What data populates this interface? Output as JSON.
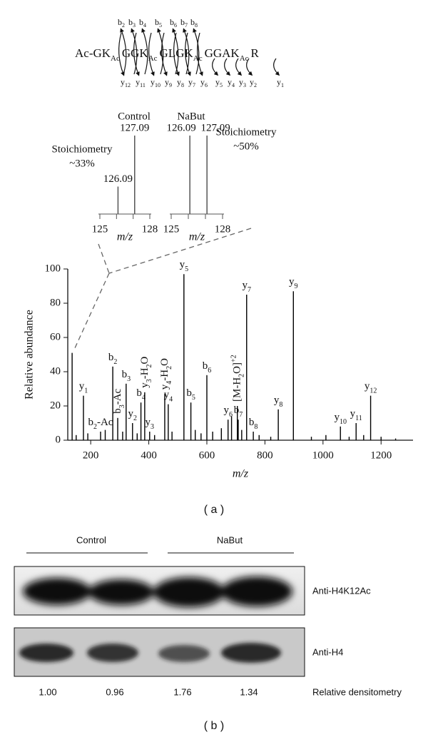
{
  "peptide": {
    "sequence": [
      "Ac-GK",
      "Ac",
      "GGK",
      "Ac",
      "GLGK",
      "Ac",
      "GGAK",
      "Ac",
      "R"
    ],
    "b_ions": [
      [
        "b",
        "2"
      ],
      [
        "b",
        "3"
      ],
      [
        "b",
        "4"
      ],
      [
        "b",
        "5"
      ],
      [
        "b",
        "6"
      ],
      [
        "b",
        "7"
      ],
      [
        "b",
        "8"
      ]
    ],
    "y_ions": [
      [
        "y",
        "12"
      ],
      [
        "y",
        "11"
      ],
      [
        "y",
        "10"
      ],
      [
        "y",
        "9"
      ],
      [
        "y",
        "8"
      ],
      [
        "y",
        "7"
      ],
      [
        "y",
        "6"
      ],
      [
        "y",
        "5"
      ],
      [
        "y",
        "4"
      ],
      [
        "y",
        "3"
      ],
      [
        "y",
        "2"
      ],
      [
        "y",
        "1"
      ]
    ]
  },
  "chart_data": [
    {
      "type": "spectrum",
      "title": "Control",
      "note": [
        "Stoichiometry",
        "~33%"
      ],
      "xlabel": "m/z",
      "x": [
        126.09,
        127.09
      ],
      "values": [
        35,
        100
      ],
      "xlim": [
        125,
        128
      ],
      "ylim": [
        0,
        100
      ],
      "xticks": [
        125,
        {
          "value": 126,
          "label": null
        },
        {
          "value": 127,
          "label": null
        },
        128
      ],
      "color": "#555555"
    },
    {
      "type": "spectrum",
      "title": "NaBut",
      "note": [
        "Stoichiometry",
        "~50%"
      ],
      "xlabel": "m/z",
      "x": [
        126.09,
        127.09
      ],
      "values": [
        100,
        100
      ],
      "xlim": [
        125,
        128
      ],
      "ylim": [
        0,
        100
      ],
      "xticks": [
        125,
        {
          "value": 126,
          "label": null
        },
        {
          "value": 127,
          "label": null
        },
        128
      ],
      "color": "#555555"
    },
    {
      "type": "spectrum",
      "xlabel": "m/z",
      "ylabel": "Relative abundance",
      "x": [
        136,
        175,
        234,
        276,
        293,
        322,
        344,
        373,
        386,
        403,
        455,
        467,
        521,
        545,
        600,
        673,
        705,
        708,
        737,
        760,
        846,
        898,
        1060,
        1114,
        1164,
        150,
        190,
        250,
        310,
        360,
        420,
        480,
        560,
        580,
        620,
        650,
        685,
        720,
        780,
        820,
        960,
        1010,
        1090,
        1140,
        1200,
        1250
      ],
      "values": [
        51,
        26,
        5,
        43,
        13,
        33,
        10,
        22,
        28,
        5,
        27,
        21,
        97,
        22,
        38,
        12,
        20,
        12,
        85,
        5,
        18,
        87,
        8,
        10,
        26,
        3,
        4,
        6,
        5,
        4,
        3,
        5,
        6,
        4,
        5,
        7,
        14,
        6,
        3,
        2,
        2,
        3,
        2,
        3,
        2,
        1
      ],
      "labels": [
        null,
        [
          "y",
          "1"
        ],
        [
          "b",
          "2",
          "-Ac"
        ],
        [
          "b",
          "2"
        ],
        [
          "b",
          "3",
          "-Ac"
        ],
        [
          "b",
          "3"
        ],
        [
          "y",
          "2"
        ],
        [
          "b",
          "4"
        ],
        [
          "y",
          "3",
          "-H",
          "2",
          "O"
        ],
        [
          "y",
          "3"
        ],
        [
          "y",
          "4",
          "-H",
          "2",
          "O"
        ],
        [
          "y",
          "4"
        ],
        [
          "y",
          "5"
        ],
        [
          "b",
          "5"
        ],
        [
          "b",
          "6"
        ],
        [
          "y",
          "6"
        ],
        [
          "[M-H",
          "2",
          "O]",
          "+2"
        ],
        [
          "b",
          "7"
        ],
        [
          "y",
          "7"
        ],
        [
          "b",
          "8"
        ],
        [
          "y",
          "8"
        ],
        [
          "y",
          "9"
        ],
        [
          "y",
          "10"
        ],
        [
          "y",
          "11"
        ],
        [
          "y",
          "12"
        ],
        null,
        null,
        null,
        null,
        null,
        null,
        null,
        null,
        null,
        null,
        null,
        null,
        null,
        null,
        null,
        null,
        null,
        null,
        null,
        null,
        null
      ],
      "xlim": [
        121,
        1310
      ],
      "ylim": [
        0,
        100
      ],
      "xticks": [
        200,
        400,
        600,
        800,
        1000,
        1200
      ],
      "yticks": [
        0,
        20,
        40,
        60,
        80,
        100
      ],
      "color": "#000000"
    }
  ],
  "blot": {
    "groups": [
      "Control",
      "NaBut"
    ],
    "antibodies": [
      "Anti-H4K12Ac",
      "Anti-H4"
    ],
    "densitometry_label": "Relative densitometry",
    "densitometry": [
      "1.00",
      "0.96",
      "1.76",
      "1.34"
    ]
  },
  "captions": [
    "( a )",
    "( b )"
  ]
}
